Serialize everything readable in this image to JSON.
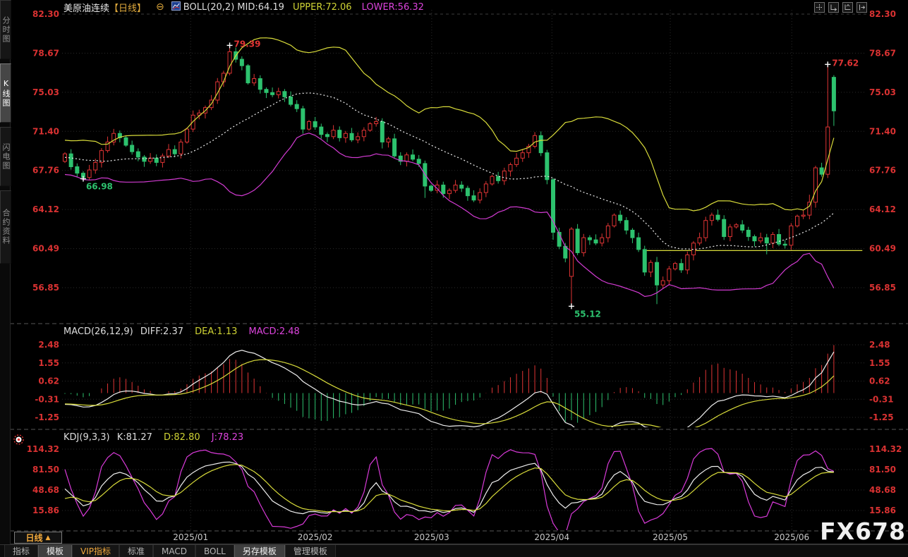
{
  "title_bar": {
    "symbol": "美原油连续",
    "period": "【日线】",
    "collapse": "⊖",
    "boll": "BOLL(20,2)",
    "mid": "MID:64.19",
    "upper": "UPPER:72.06",
    "lower": "LOWER:56.32"
  },
  "toolbar": {
    "icons": [
      {
        "name": "crosshair-icon"
      },
      {
        "name": "axis-zoom-icon"
      },
      {
        "name": "axis-scale-icon"
      },
      {
        "name": "scroll-right-icon"
      }
    ]
  },
  "sidebar": {
    "tabs": [
      {
        "label": "分时图",
        "name": "tab-timeshare-chart",
        "selected": false
      },
      {
        "label": "K线图",
        "name": "tab-kline-chart",
        "selected": true
      },
      {
        "label": "闪电图",
        "name": "tab-flash-chart",
        "selected": false
      },
      {
        "label": "合约资料",
        "name": "tab-contract-info",
        "selected": false
      }
    ]
  },
  "macd_header": {
    "name": "MACD(26,12,9)",
    "diff": "DIFF:2.37",
    "dea": "DEA:1.13",
    "macd": "MACD:2.48"
  },
  "kdj_header": {
    "name": "KDJ(9,3,3)",
    "k": "K:81.27",
    "d": "D:82.80",
    "j": "J:78.23"
  },
  "bottom_bar": {
    "period": "日线",
    "arrow": "▲",
    "tabs": [
      {
        "label": "指标",
        "name": "tab-indicators",
        "selected": false,
        "accent": false
      },
      {
        "label": "模板",
        "name": "tab-templates",
        "selected": true,
        "accent": false
      },
      {
        "label": "VIP指标",
        "name": "tab-vip-indicators",
        "selected": false,
        "accent": true
      },
      {
        "label": "标准",
        "name": "tab-standard",
        "selected": false,
        "accent": false
      },
      {
        "label": "MACD",
        "name": "tab-macd",
        "selected": false,
        "accent": false
      },
      {
        "label": "BOLL",
        "name": "tab-boll",
        "selected": false,
        "accent": false
      },
      {
        "label": "另存模板",
        "name": "tab-save-template",
        "selected": true,
        "accent": false
      },
      {
        "label": "管理模板",
        "name": "tab-manage-template",
        "selected": false,
        "accent": false
      }
    ]
  },
  "watermark": "FX678",
  "chart_data": {
    "type": "candlestick",
    "title": "美原油连续【日线】",
    "panels": [
      "price + BOLL(20,2)",
      "MACD(26,12,9)",
      "KDJ(9,3,3)"
    ],
    "y_axis_main": [
      "82.30",
      "78.67",
      "75.03",
      "71.40",
      "67.76",
      "64.12",
      "60.49",
      "56.85"
    ],
    "y_axis_macd": [
      "2.48",
      "1.55",
      "0.62",
      "-0.31",
      "-1.25"
    ],
    "y_axis_kdj": [
      "114.32",
      "81.50",
      "48.68",
      "15.86"
    ],
    "x_ticks": [
      {
        "label": "2025/01",
        "index": 20.6
      },
      {
        "label": "2025/02",
        "index": 41.0
      },
      {
        "label": "2025/03",
        "index": 60.1
      },
      {
        "label": "2025/04",
        "index": 79.8
      },
      {
        "label": "2025/05",
        "index": 99.2
      },
      {
        "label": "2025/06",
        "index": 119.1
      }
    ],
    "first_open": 68.6,
    "preroll_closes": [
      70.8,
      70.3,
      69.8,
      69.3,
      69.0,
      69.2,
      68.8,
      68.5,
      68.2,
      68.0,
      68.3,
      68.6,
      68.4,
      68.1
    ],
    "closes": [
      69.3,
      68.1,
      67.5,
      67.1,
      67.8,
      68.5,
      69.6,
      70.4,
      71.2,
      70.8,
      70.1,
      69.5,
      69.0,
      68.6,
      68.9,
      68.5,
      69.1,
      69.7,
      69.3,
      70.4,
      71.6,
      72.9,
      73.1,
      73.6,
      74.3,
      76.0,
      76.8,
      78.8,
      78.1,
      77.5,
      75.9,
      76.3,
      75.3,
      75.0,
      74.8,
      75.1,
      74.6,
      73.9,
      73.5,
      71.6,
      72.3,
      71.8,
      71.1,
      70.9,
      71.5,
      70.8,
      71.2,
      70.6,
      70.9,
      71.5,
      72.1,
      72.3,
      70.4,
      70.7,
      69.1,
      68.6,
      69.2,
      68.8,
      68.4,
      66.3,
      65.9,
      66.4,
      65.6,
      65.9,
      66.4,
      66.1,
      65.4,
      65.0,
      65.7,
      66.5,
      67.2,
      66.8,
      67.7,
      68.3,
      68.9,
      69.4,
      70.0,
      71.0,
      69.4,
      66.9,
      62.0,
      60.7,
      59.6,
      62.3,
      60.1,
      61.5,
      61.3,
      61.0,
      61.5,
      62.6,
      63.6,
      63.1,
      62.2,
      61.5,
      60.4,
      58.3,
      59.2,
      57.1,
      57.5,
      58.6,
      59.1,
      58.5,
      59.9,
      61.0,
      61.5,
      63.1,
      63.6,
      63.2,
      61.6,
      62.5,
      62.7,
      62.2,
      61.6,
      61.2,
      61.5,
      61.0,
      61.8,
      60.9,
      60.8,
      62.6,
      63.5,
      63.6,
      64.8,
      68.0,
      67.4,
      71.8,
      73.3
    ],
    "overrides": {
      "3": {
        "low": 66.98
      },
      "8": {
        "high": 71.62
      },
      "27": {
        "high": 79.39
      },
      "52": {
        "low": 69.8
      },
      "59": {
        "low": 65.2
      },
      "77": {
        "high": 71.32
      },
      "80": {
        "low": 61.3
      },
      "83": {
        "open": 57.9,
        "low": 55.12
      },
      "97": {
        "low": 55.32
      },
      "115": {
        "low": 59.95
      },
      "122": {
        "high": 65.5
      },
      "125": {
        "high": 77.62
      },
      "126": {
        "open": 76.42,
        "high": 76.62,
        "low": 71.9
      }
    },
    "annotations": [
      {
        "index": 27,
        "price": 79.39,
        "label": "79.39",
        "kind": "high"
      },
      {
        "index": 3,
        "price": 66.98,
        "label": "66.98",
        "kind": "low"
      },
      {
        "index": 125,
        "price": 77.62,
        "label": "77.62",
        "kind": "high"
      },
      {
        "index": 83,
        "price": 55.12,
        "label": "55.12",
        "kind": "low"
      }
    ],
    "trendline": {
      "price": 60.3,
      "from_index": 95,
      "to_x_frac": 0.995
    },
    "indicator_values": {
      "boll_mid": 64.19,
      "boll_upper": 72.06,
      "boll_lower": 56.32,
      "macd_diff": 2.37,
      "macd_dea": 1.13,
      "macd": 2.48,
      "kdj_k": 81.27,
      "kdj_d": 82.8,
      "kdj_j": 78.23
    },
    "indicators": {
      "boll": {
        "period": 20,
        "mult": 2
      },
      "macd": {
        "fast": 12,
        "slow": 26,
        "signal": 9
      },
      "kdj": {
        "n": 9,
        "m1": 3,
        "m2": 3
      }
    },
    "colors": {
      "up": "#df3434",
      "down": "#2dc26e",
      "boll_upper": "#d8db3a",
      "boll_mid": "#efefef",
      "boll_lower": "#d23bd2",
      "diff": "#efefef",
      "dea": "#d8db3a",
      "hist_pos": "#df3434",
      "hist_neg": "#2dc26e",
      "k": "#efefef",
      "d": "#d8db3a",
      "j": "#d93ad9",
      "axis_label": "#da3232",
      "month_label": "#c8c8c8",
      "grid": "#2b2b2b",
      "annotation_high": "#df3434",
      "annotation_low": "#2dc26e",
      "trendline": "#d8db3a"
    }
  }
}
